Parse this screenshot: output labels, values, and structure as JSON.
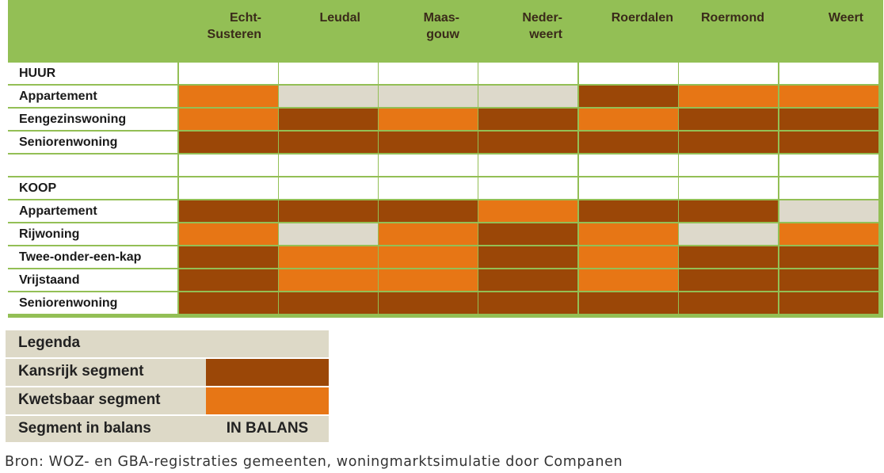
{
  "table": {
    "columns": [
      "Echt-\nSusteren",
      "Leudal",
      "Maas-\ngouw",
      "Neder-\nweert",
      "Roerdalen",
      "Roermond",
      "Weert"
    ],
    "rows": [
      {
        "label": "HUUR",
        "cells": [
          "",
          "",
          "",
          "",
          "",
          "",
          ""
        ]
      },
      {
        "label": "Appartement",
        "cells": [
          "kwetsbaar",
          "balans",
          "balans",
          "balans",
          "kansrijk",
          "kwetsbaar",
          "kwetsbaar"
        ]
      },
      {
        "label": "Eengezinswoning",
        "cells": [
          "kwetsbaar",
          "kansrijk",
          "kwetsbaar",
          "kansrijk",
          "kwetsbaar",
          "kansrijk",
          "kansrijk"
        ]
      },
      {
        "label": "Seniorenwoning",
        "cells": [
          "kansrijk",
          "kansrijk",
          "kansrijk",
          "kansrijk",
          "kansrijk",
          "kansrijk",
          "kansrijk"
        ]
      },
      {
        "label": "",
        "cells": [
          "",
          "",
          "",
          "",
          "",
          "",
          ""
        ]
      },
      {
        "label": "KOOP",
        "cells": [
          "",
          "",
          "",
          "",
          "",
          "",
          ""
        ]
      },
      {
        "label": "Appartement",
        "cells": [
          "kansrijk",
          "kansrijk",
          "kansrijk",
          "kwetsbaar",
          "kansrijk",
          "kansrijk",
          "balans"
        ]
      },
      {
        "label": "Rijwoning",
        "cells": [
          "kwetsbaar",
          "balans",
          "kwetsbaar",
          "kansrijk",
          "kwetsbaar",
          "balans",
          "kwetsbaar"
        ]
      },
      {
        "label": "Twee-onder-een-kap",
        "cells": [
          "kansrijk",
          "kwetsbaar",
          "kwetsbaar",
          "kansrijk",
          "kwetsbaar",
          "kansrijk",
          "kansrijk"
        ]
      },
      {
        "label": "Vrijstaand",
        "cells": [
          "kansrijk",
          "kwetsbaar",
          "kwetsbaar",
          "kansrijk",
          "kwetsbaar",
          "kansrijk",
          "kansrijk"
        ]
      },
      {
        "label": "Seniorenwoning",
        "cells": [
          "kansrijk",
          "kansrijk",
          "kansrijk",
          "kansrijk",
          "kansrijk",
          "kansrijk",
          "kansrijk"
        ]
      }
    ]
  },
  "legend": {
    "title": "Legenda",
    "items": [
      {
        "key": "kansrijk",
        "label": "Kansrijk segment",
        "value": ""
      },
      {
        "key": "kwetsbaar",
        "label": "Kwetsbaar segment",
        "value": ""
      },
      {
        "key": "balans",
        "label": "Segment in balans",
        "value": "IN BALANS"
      }
    ]
  },
  "colors": {
    "header_green": "#93bf55",
    "grid_green": "#93bf55",
    "kansrijk": "#9b4707",
    "kwetsbaar": "#e77615",
    "balans": "#ddd9cb",
    "empty": "#ffffff",
    "legend_bg": "#ddd9c7"
  },
  "source": "Bron: WOZ- en GBA-registraties gemeenten, woningmarktsimulatie door Companen"
}
